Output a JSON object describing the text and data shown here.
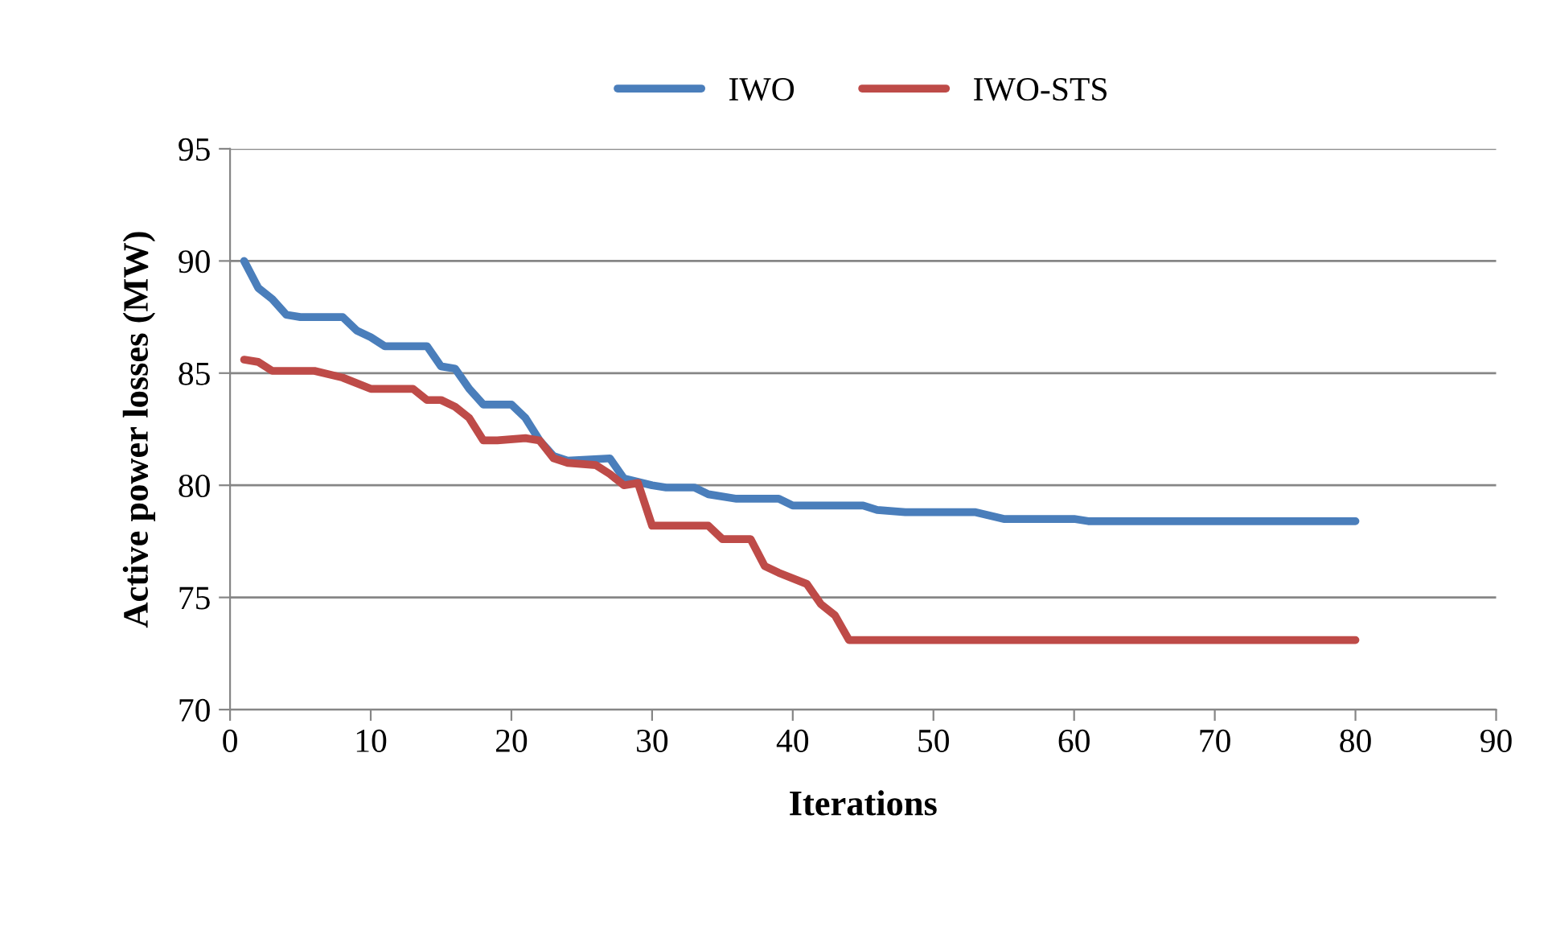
{
  "chart_data": {
    "type": "line",
    "xlabel": "Iterations",
    "ylabel": "Active power losses (MW)",
    "xlim": [
      0,
      90
    ],
    "xticks": [
      0,
      10,
      20,
      30,
      40,
      50,
      60,
      70,
      80,
      90
    ],
    "ylim": [
      70,
      95
    ],
    "yticks": [
      70,
      75,
      80,
      85,
      90,
      95
    ],
    "grid": "y",
    "legend": "top",
    "marker": "none",
    "line_style": "solid",
    "series": [
      {
        "name": "IWO",
        "color": "#4a7ebb",
        "x": [
          1,
          2,
          3,
          4,
          5,
          8,
          9,
          10,
          11,
          13,
          14,
          15,
          16,
          17,
          18,
          20,
          21,
          22,
          23,
          24,
          27,
          28,
          30,
          31,
          33,
          34,
          36,
          39,
          40,
          45,
          46,
          48,
          50,
          53,
          55,
          60,
          61,
          80
        ],
        "values": [
          90,
          88.8,
          88.3,
          87.6,
          87.5,
          87.5,
          86.9,
          86.6,
          86.2,
          86.2,
          86.2,
          85.3,
          85.2,
          84.3,
          83.6,
          83.6,
          83.0,
          82.0,
          81.3,
          81.1,
          81.2,
          80.3,
          80.0,
          79.9,
          79.9,
          79.6,
          79.4,
          79.4,
          79.1,
          79.1,
          78.9,
          78.8,
          78.8,
          78.8,
          78.5,
          78.5,
          78.4,
          78.4
        ]
      },
      {
        "name": "IWO-STS",
        "color": "#be4b48",
        "x": [
          1,
          2,
          3,
          6,
          8,
          10,
          13,
          14,
          15,
          16,
          17,
          18,
          19,
          21,
          22,
          23,
          24,
          26,
          27,
          28,
          29,
          30,
          33,
          34,
          35,
          37,
          38,
          39,
          41,
          42,
          43,
          44,
          45,
          80
        ],
        "values": [
          85.6,
          85.5,
          85.1,
          85.1,
          84.8,
          84.3,
          84.3,
          83.8,
          83.8,
          83.5,
          83.0,
          82.0,
          82.0,
          82.1,
          82.0,
          81.2,
          81.0,
          80.9,
          80.5,
          80.0,
          80.1,
          78.2,
          78.2,
          78.2,
          77.6,
          77.6,
          76.4,
          76.1,
          75.6,
          74.7,
          74.2,
          73.1,
          73.1,
          73.1
        ]
      }
    ]
  }
}
